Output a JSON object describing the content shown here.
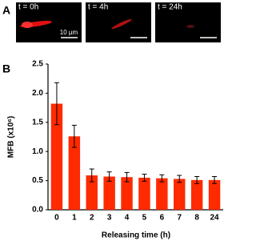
{
  "panels": {
    "a_label": "A",
    "b_label": "B",
    "image_labels": [
      "t = 0h",
      "t = 4h",
      "t = 24h"
    ],
    "scale_label": "10 µm"
  },
  "chart_data": {
    "type": "bar",
    "categories": [
      "0",
      "1",
      "2",
      "3",
      "4",
      "5",
      "6",
      "7",
      "8",
      "24"
    ],
    "values": [
      1.82,
      1.26,
      0.59,
      0.57,
      0.56,
      0.55,
      0.54,
      0.53,
      0.51,
      0.51
    ],
    "errors": [
      0.36,
      0.19,
      0.11,
      0.08,
      0.08,
      0.06,
      0.06,
      0.06,
      0.06,
      0.06
    ],
    "color": "#ff2a00",
    "ylim": [
      0,
      2.5
    ],
    "yticks": [
      {
        "value": 0,
        "label": "0.0"
      },
      0.5,
      {
        "value": 1,
        "label": "1.0"
      },
      1.5,
      {
        "value": 2,
        "label": "2.0"
      },
      2.5
    ],
    "ylabel": "MFB (x10⁶)",
    "xlabel": "Releasing time (h)"
  }
}
